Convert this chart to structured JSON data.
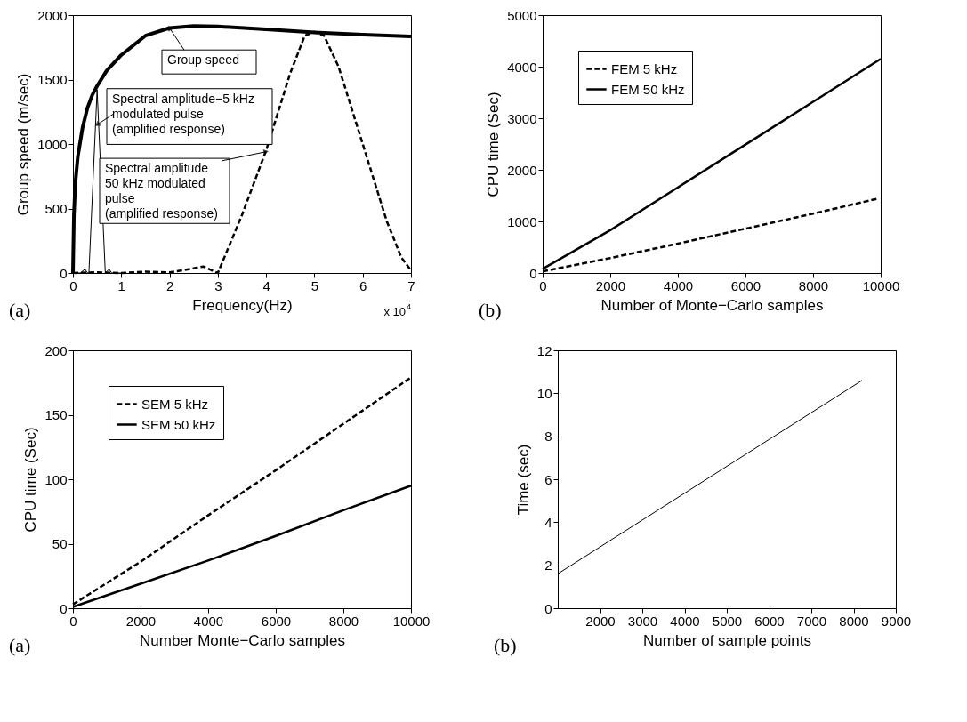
{
  "chart_data": [
    {
      "type": "line",
      "xlabel": "Frequency(Hz)",
      "ylabel": "Group speed (m/sec)",
      "xlim": [
        0,
        7
      ],
      "ylim": [
        0,
        2000
      ],
      "xticks": [
        0,
        1,
        2,
        3,
        4,
        5,
        6,
        7
      ],
      "yticks": [
        0,
        500,
        1000,
        1500,
        2000
      ],
      "series": [
        {
          "color": "#000000",
          "line_style": "solid",
          "x": [
            0,
            0.02,
            0.05,
            0.1,
            0.2,
            0.3,
            0.4,
            0.5,
            0.7,
            1,
            1.5,
            2,
            2.5,
            3,
            4,
            5,
            6,
            7
          ],
          "values": [
            0,
            450,
            700,
            900,
            1130,
            1280,
            1380,
            1450,
            1570,
            1690,
            1840,
            1900,
            1915,
            1912,
            1890,
            1865,
            1848,
            1835
          ]
        },
        {
          "color": "#000000",
          "line_style": "solid",
          "x": [
            0,
            0.15,
            0.25,
            0.3,
            0.33,
            0.5,
            0.67,
            0.75,
            0.8,
            1
          ],
          "values": [
            0,
            0,
            30,
            0,
            0,
            1420,
            0,
            30,
            0,
            0
          ]
        },
        {
          "color": "#000000",
          "line_style": "dashed",
          "x": [
            0,
            0.5,
            1,
            1.5,
            2,
            2.4,
            2.7,
            3,
            3.5,
            4,
            4.5,
            4.8,
            5,
            5.2,
            5.5,
            6,
            6.5,
            6.8,
            7
          ],
          "values": [
            0,
            5,
            0,
            10,
            5,
            30,
            50,
            0,
            450,
            950,
            1550,
            1840,
            1870,
            1840,
            1600,
            1000,
            400,
            120,
            20
          ]
        }
      ],
      "annotations": [
        {
          "text": "Group speed",
          "x": 2,
          "y": 1900
        },
        {
          "text": "Spectral amplitude−5 kHz\nmodulated pulse\n(amplified response)",
          "x": 0.5,
          "y": 1150
        },
        {
          "text": "Spectral amplitude\n50 kHz modulated\npulse\n(amplified response)",
          "x": 4,
          "y": 940
        },
        "(a)",
        "x 10$^{4}$"
      ]
    },
    {
      "type": "line",
      "xlabel": "Number of Monte−Carlo samples",
      "ylabel": "CPU time (Sec)",
      "xlim": [
        0,
        10000
      ],
      "ylim": [
        0,
        5000
      ],
      "xticks": [
        0,
        2000,
        4000,
        6000,
        8000,
        10000
      ],
      "yticks": [
        0,
        1000,
        2000,
        3000,
        4000,
        5000
      ],
      "legend": "top left",
      "x": [
        0,
        2000,
        4000,
        6000,
        8000,
        10000
      ],
      "series": [
        {
          "name": "FEM 5 kHz",
          "color": "#000000",
          "line_style": "dashed",
          "x": [
            0,
            2000,
            4000,
            6000,
            8000,
            9900
          ],
          "values": [
            30,
            290,
            570,
            860,
            1150,
            1440
          ]
        },
        {
          "name": "FEM 50 kHz",
          "color": "#000000",
          "line_style": "solid",
          "values": [
            80,
            830,
            1660,
            2490,
            3320,
            4150
          ]
        }
      ],
      "annotations": [
        "(b)"
      ]
    },
    {
      "type": "line",
      "xlabel": "Number Monte−Carlo samples",
      "ylabel": "CPU time (Sec)",
      "xlim": [
        0,
        10000
      ],
      "ylim": [
        0,
        200
      ],
      "xticks": [
        0,
        2000,
        4000,
        6000,
        8000,
        10000
      ],
      "yticks": [
        0,
        50,
        100,
        150,
        200
      ],
      "legend": "top left",
      "x": [
        0,
        2000,
        4000,
        6000,
        8000,
        10000
      ],
      "series": [
        {
          "name": "SEM 5 kHz",
          "color": "#000000",
          "line_style": "dashed",
          "values": [
            3,
            36,
            72,
            107,
            143,
            179
          ]
        },
        {
          "name": "SEM 50 kHz",
          "color": "#000000",
          "line_style": "solid",
          "values": [
            1,
            19,
            37,
            56,
            76,
            95
          ]
        }
      ],
      "annotations": [
        "(a)"
      ]
    },
    {
      "type": "line",
      "xlabel": "Number of sample points",
      "ylabel": "Time (sec)",
      "xlim": [
        1000,
        9000
      ],
      "ylim": [
        0,
        12
      ],
      "xticks": [
        2000,
        3000,
        4000,
        5000,
        6000,
        7000,
        8000,
        9000
      ],
      "yticks": [
        0,
        2,
        4,
        6,
        8,
        10,
        12
      ],
      "series": [
        {
          "color": "#000000",
          "line_style": "solid",
          "x": [
            1000,
            8200
          ],
          "values": [
            1.6,
            10.6
          ]
        }
      ],
      "annotations": [
        "(b)"
      ]
    }
  ]
}
